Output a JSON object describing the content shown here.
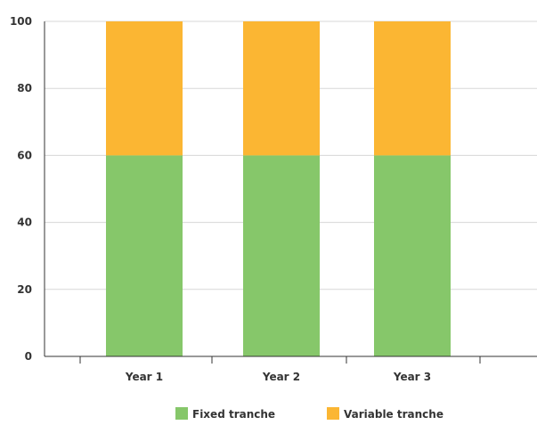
{
  "chart_data": {
    "type": "bar",
    "stacked": true,
    "categories": [
      "Year 1",
      "Year 2",
      "Year 3"
    ],
    "series": [
      {
        "name": "Fixed tranche",
        "values": [
          60,
          60,
          60
        ],
        "color": "#86c76a"
      },
      {
        "name": "Variable tranche",
        "values": [
          40,
          40,
          40
        ],
        "color": "#fbb633"
      }
    ],
    "ylim": [
      0,
      100
    ],
    "yticks": [
      0,
      20,
      40,
      60,
      80,
      100
    ],
    "grid": true,
    "legend_position": "bottom"
  }
}
